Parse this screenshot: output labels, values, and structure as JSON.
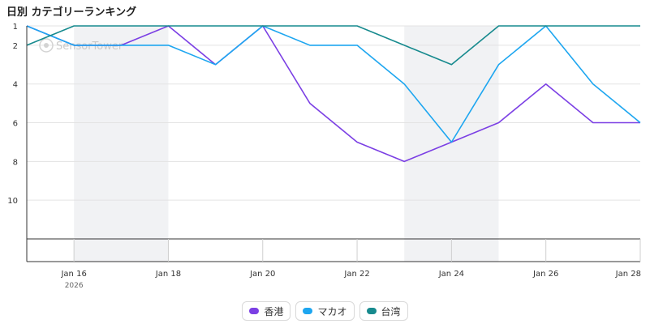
{
  "chart_data": {
    "type": "line",
    "title": "日別 カテゴリーランキング",
    "watermark": "SensorTower",
    "x": [
      "Jan 15",
      "Jan 16",
      "Jan 17",
      "Jan 18",
      "Jan 19",
      "Jan 20",
      "Jan 21",
      "Jan 22",
      "Jan 23",
      "Jan 24",
      "Jan 25",
      "Jan 26",
      "Jan 27",
      "Jan 28"
    ],
    "x_tick_labels": [
      "Jan 16",
      "Jan 18",
      "Jan 20",
      "Jan 22",
      "Jan 24",
      "Jan 26",
      "Jan 28"
    ],
    "x_tick_indices": [
      1,
      3,
      5,
      7,
      9,
      11,
      13
    ],
    "x_sublabel": "2026",
    "y_tick_labels": [
      "1",
      "2",
      "4",
      "6",
      "8",
      "10"
    ],
    "y_tick_values": [
      1,
      2,
      4,
      6,
      8,
      10
    ],
    "y_reversed": true,
    "ylim": [
      1,
      12
    ],
    "shaded_ranges": [
      [
        1,
        3
      ],
      [
        8,
        10
      ]
    ],
    "grid": true,
    "legend_position": "bottom",
    "series": [
      {
        "name": "香港",
        "color": "#7b3fe4",
        "values": [
          1,
          2,
          2,
          1,
          3,
          1,
          5,
          7,
          8,
          7,
          6,
          4,
          6,
          6
        ]
      },
      {
        "name": "マカオ",
        "color": "#1da6f0",
        "values": [
          1,
          2,
          2,
          2,
          3,
          1,
          2,
          2,
          4,
          7,
          3,
          1,
          4,
          6
        ]
      },
      {
        "name": "台湾",
        "color": "#178a8e",
        "values": [
          2,
          1,
          1,
          1,
          1,
          1,
          1,
          1,
          2,
          3,
          1,
          1,
          1,
          1
        ]
      }
    ]
  }
}
